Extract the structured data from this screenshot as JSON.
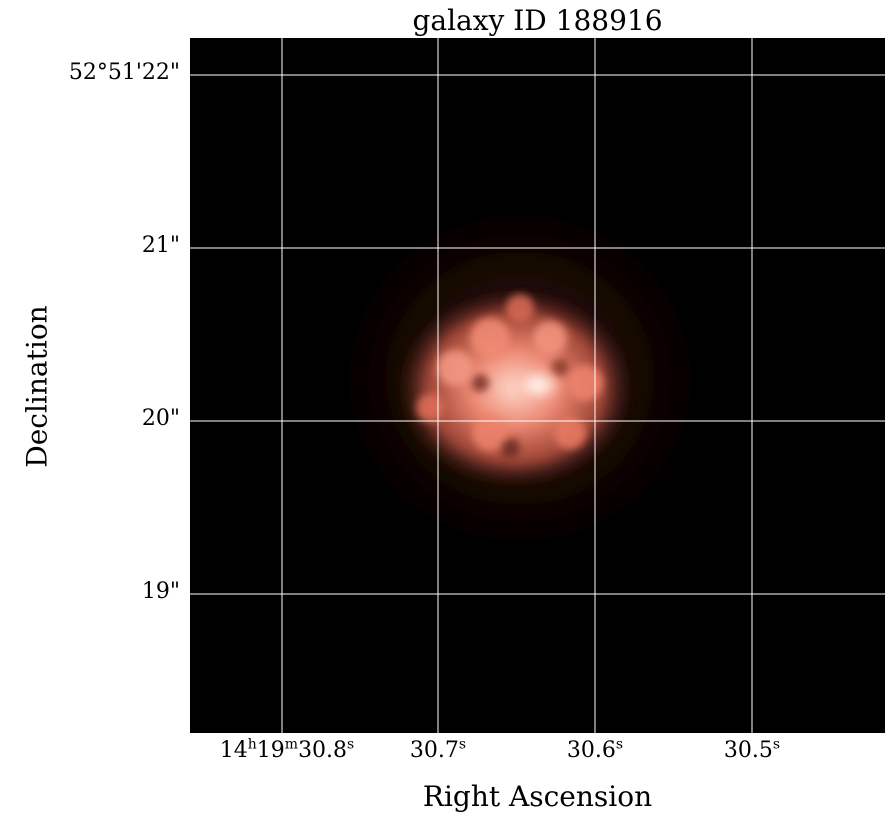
{
  "title": "galaxy ID 188916",
  "axes": {
    "xlabel": "Right Ascension",
    "ylabel": "Declination",
    "x_ticks": [
      {
        "h": "14",
        "hs": "h",
        "m": "19",
        "ms": "m",
        "s": "30.8",
        "ss": "s"
      },
      {
        "s": "30.7",
        "ss": "s"
      },
      {
        "s": "30.6",
        "ss": "s"
      },
      {
        "s": "30.5",
        "ss": "s"
      }
    ],
    "y_ticks": [
      "52°51'22\"",
      "21\"",
      "20\"",
      "19\""
    ]
  },
  "grid": true,
  "colors": {
    "background": "#000000",
    "galaxy_core": "#fff5f0",
    "galaxy_body": "#f07a62",
    "grid": "#ffffff"
  }
}
